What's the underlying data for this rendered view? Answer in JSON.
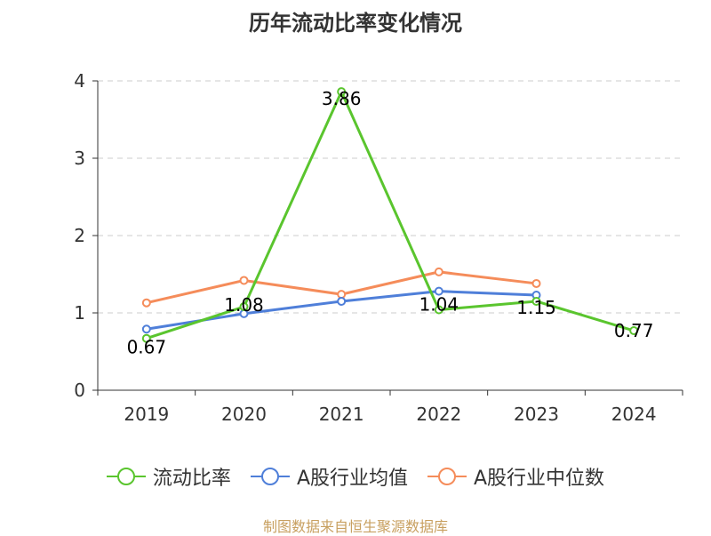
{
  "title": "历年流动比率变化情况",
  "source": "制图数据来自恒生聚源数据库",
  "colors": {
    "grid": "#cccccc",
    "axis": "#333333"
  },
  "chart_data": {
    "type": "line",
    "title": "历年流动比率变化情况",
    "categories": [
      "2019",
      "2020",
      "2021",
      "2022",
      "2023",
      "2024"
    ],
    "ylim": [
      0,
      4
    ],
    "yticks": [
      0,
      1,
      2,
      3,
      4
    ],
    "grid": "horizontal dashed",
    "legend_position": "bottom",
    "series": [
      {
        "name": "流动比率",
        "color": "#5ac52e",
        "values": [
          0.67,
          1.08,
          3.86,
          1.04,
          1.15,
          0.77
        ],
        "labels": [
          "0.67",
          "1.08",
          "3.86",
          "1.04",
          "1.15",
          "0.77"
        ]
      },
      {
        "name": "A股行业均值",
        "color": "#4f7fd9",
        "values": [
          0.79,
          0.99,
          1.15,
          1.28,
          1.23,
          null
        ]
      },
      {
        "name": "A股行业中位数",
        "color": "#f58c5a",
        "values": [
          1.13,
          1.42,
          1.24,
          1.53,
          1.38,
          null
        ]
      }
    ]
  }
}
